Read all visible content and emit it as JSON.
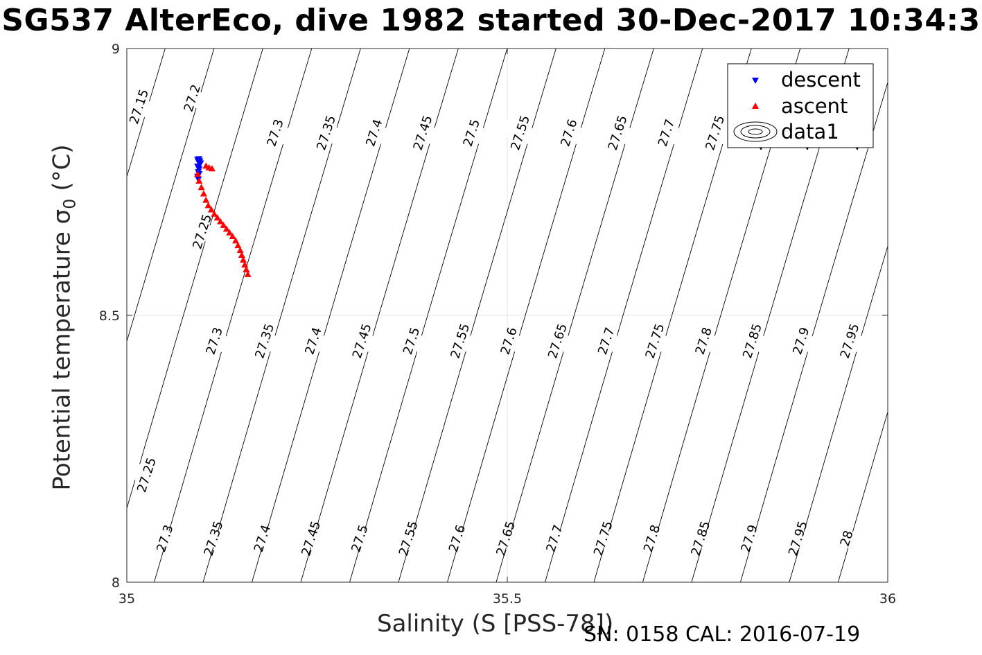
{
  "chart_data": {
    "type": "scatter",
    "title": "SG537 AlterEco, dive 1982 started 30-Dec-2017 10:34:3",
    "xlabel": "Salinity (S [PSS-78])",
    "ylabel_main": "Potential temperature ",
    "ylabel_sigma": "σ",
    "ylabel_sub": "0",
    "ylabel_unit": " (°C)",
    "footer": "SN: 0158  CAL: 2016-07-19",
    "xlim": [
      35,
      36
    ],
    "ylim": [
      8,
      9
    ],
    "xticks": [
      35,
      35.5,
      36
    ],
    "xtick_labels": [
      "35",
      "35.5",
      "36"
    ],
    "yticks": [
      8,
      8.5,
      9
    ],
    "ytick_labels": [
      "8",
      "8.5",
      "9"
    ],
    "grid": true,
    "legend_placement": "top-right",
    "legend": [
      "descent",
      "ascent",
      "data1"
    ],
    "series": [
      {
        "name": "descent",
        "color": "#0000ff",
        "marker": "triangle-down",
        "points": [
          [
            35.095,
            8.793
          ],
          [
            35.094,
            8.788
          ],
          [
            35.096,
            8.783
          ],
          [
            35.093,
            8.779
          ],
          [
            35.095,
            8.774
          ],
          [
            35.094,
            8.769
          ],
          [
            35.095,
            8.765
          ],
          [
            35.093,
            8.76
          ],
          [
            35.094,
            8.755
          ],
          [
            35.096,
            8.789
          ],
          [
            35.097,
            8.785
          ],
          [
            35.093,
            8.792
          ]
        ]
      },
      {
        "name": "ascent",
        "color": "#ff0000",
        "marker": "triangle-up",
        "points": [
          [
            35.093,
            8.765
          ],
          [
            35.095,
            8.752
          ],
          [
            35.098,
            8.74
          ],
          [
            35.101,
            8.728
          ],
          [
            35.104,
            8.716
          ],
          [
            35.107,
            8.706
          ],
          [
            35.111,
            8.698
          ],
          [
            35.115,
            8.69
          ],
          [
            35.119,
            8.683
          ],
          [
            35.123,
            8.676
          ],
          [
            35.127,
            8.669
          ],
          [
            35.131,
            8.662
          ],
          [
            35.135,
            8.655
          ],
          [
            35.139,
            8.648
          ],
          [
            35.143,
            8.64
          ],
          [
            35.146,
            8.631
          ],
          [
            35.149,
            8.622
          ],
          [
            35.151,
            8.613
          ],
          [
            35.153,
            8.604
          ],
          [
            35.155,
            8.595
          ],
          [
            35.157,
            8.586
          ],
          [
            35.159,
            8.577
          ],
          [
            35.104,
            8.78
          ],
          [
            35.108,
            8.777
          ],
          [
            35.112,
            8.775
          ]
        ]
      }
    ],
    "contours": [
      {
        "level": "27.15",
        "labels": [
          [
            35.016,
            8.891
          ]
        ]
      },
      {
        "level": "27.2",
        "labels": [
          [
            35.086,
            8.907
          ]
        ]
      },
      {
        "level": "27.25",
        "labels": [
          [
            35.099,
            8.657
          ],
          [
            35.026,
            8.201
          ]
        ]
      },
      {
        "level": "27.3",
        "labels": [
          [
            35.195,
            8.842
          ],
          [
            35.115,
            8.452
          ],
          [
            35.05,
            8.082
          ]
        ]
      },
      {
        "level": "27.35",
        "labels": [
          [
            35.262,
            8.842
          ],
          [
            35.181,
            8.452
          ],
          [
            35.114,
            8.082
          ]
        ]
      },
      {
        "level": "27.4",
        "labels": [
          [
            35.325,
            8.842
          ],
          [
            35.245,
            8.452
          ],
          [
            35.178,
            8.082
          ]
        ]
      },
      {
        "level": "27.45",
        "labels": [
          [
            35.389,
            8.842
          ],
          [
            35.309,
            8.452
          ],
          [
            35.242,
            8.082
          ]
        ]
      },
      {
        "level": "27.5",
        "labels": [
          [
            35.453,
            8.842
          ],
          [
            35.374,
            8.452
          ],
          [
            35.306,
            8.082
          ]
        ]
      },
      {
        "level": "27.55",
        "labels": [
          [
            35.517,
            8.842
          ],
          [
            35.438,
            8.452
          ],
          [
            35.37,
            8.082
          ]
        ]
      },
      {
        "level": "27.6",
        "labels": [
          [
            35.581,
            8.842
          ],
          [
            35.502,
            8.452
          ],
          [
            35.434,
            8.082
          ]
        ]
      },
      {
        "level": "27.65",
        "labels": [
          [
            35.645,
            8.842
          ],
          [
            35.566,
            8.452
          ],
          [
            35.498,
            8.082
          ]
        ]
      },
      {
        "level": "27.7",
        "labels": [
          [
            35.709,
            8.842
          ],
          [
            35.63,
            8.452
          ],
          [
            35.562,
            8.082
          ]
        ]
      },
      {
        "level": "27.75",
        "labels": [
          [
            35.773,
            8.842
          ],
          [
            35.694,
            8.452
          ],
          [
            35.626,
            8.082
          ]
        ]
      },
      {
        "level": "27.8",
        "labels": [
          [
            35.758,
            8.452
          ],
          [
            35.69,
            8.082
          ]
        ]
      },
      {
        "level": "27.85",
        "labels": [
          [
            35.822,
            8.452
          ],
          [
            35.754,
            8.082
          ]
        ]
      },
      {
        "level": "27.9",
        "labels": [
          [
            35.886,
            8.452
          ],
          [
            35.818,
            8.082
          ]
        ]
      },
      {
        "level": "27.95",
        "labels": [
          [
            35.95,
            8.452
          ],
          [
            35.882,
            8.082
          ]
        ]
      },
      {
        "level": "28",
        "labels": [
          [
            35.946,
            8.082
          ]
        ]
      }
    ],
    "legend_truncated_label": "2"
  }
}
